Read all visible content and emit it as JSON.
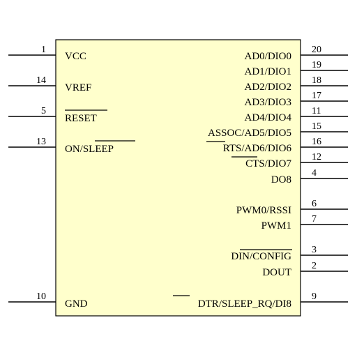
{
  "colors": {
    "body_fill": "#ffffcc",
    "outline": "#000000",
    "text": "#000000"
  },
  "left_pins": [
    {
      "number": "1",
      "label": "VCC"
    },
    {
      "number": "14",
      "label": "VREF"
    },
    {
      "number": "5",
      "label": "RESET"
    },
    {
      "number": "13",
      "label": "ON/SLEEP"
    },
    {
      "number": "10",
      "label": "GND"
    }
  ],
  "right_pins": [
    {
      "number": "20",
      "label": "AD0/DIO0"
    },
    {
      "number": "19",
      "label": "AD1/DIO1"
    },
    {
      "number": "18",
      "label": "AD2/DIO2"
    },
    {
      "number": "17",
      "label": "AD3/DIO3"
    },
    {
      "number": "11",
      "label": "AD4/DIO4"
    },
    {
      "number": "15",
      "label": "ASSOC/AD5/DIO5"
    },
    {
      "number": "16",
      "label": "RTS/AD6/DIO6"
    },
    {
      "number": "12",
      "label": "CTS/DIO7"
    },
    {
      "number": "4",
      "label": "DO8"
    },
    {
      "number": "6",
      "label": "PWM0/RSSI"
    },
    {
      "number": "7",
      "label": "PWM1"
    },
    {
      "number": "3",
      "label": "DIN/CONFIG"
    },
    {
      "number": "2",
      "label": "DOUT"
    },
    {
      "number": "9",
      "label": "DTR/SLEEP_RQ/DI8"
    }
  ]
}
